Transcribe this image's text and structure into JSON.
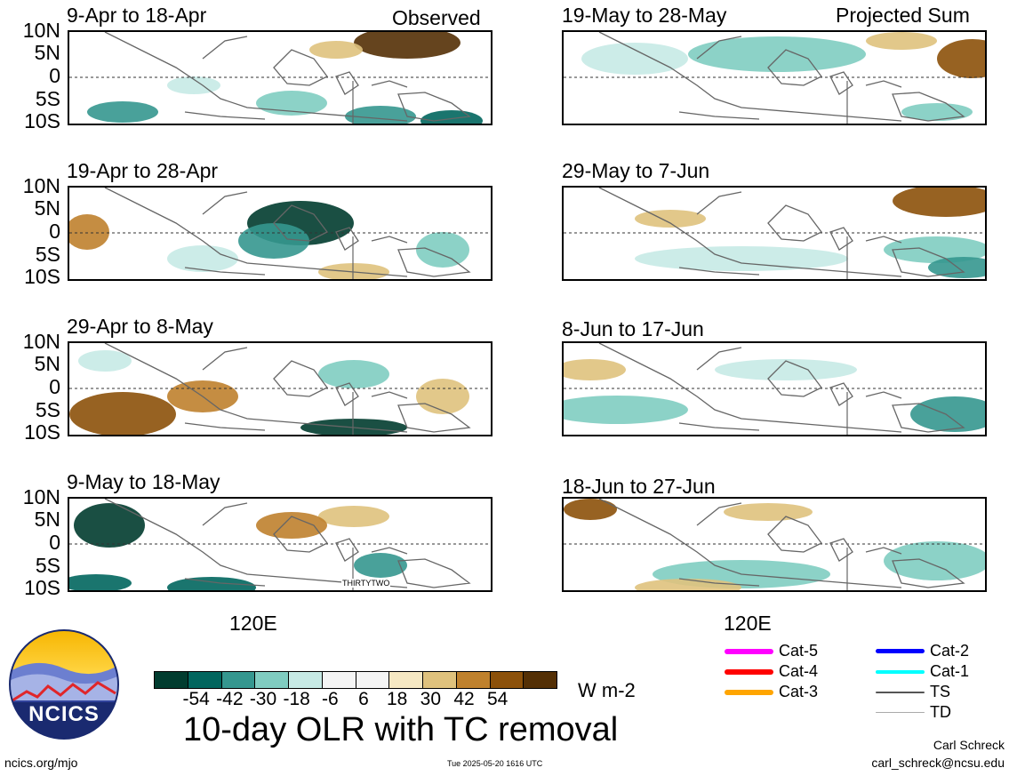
{
  "header": {
    "observed_label": "Observed",
    "projected_label": "Projected Sum"
  },
  "panels_left": [
    {
      "title": "9-Apr to 18-Apr"
    },
    {
      "title": "19-Apr to 28-Apr"
    },
    {
      "title": "29-Apr to 8-May"
    },
    {
      "title": "9-May to 18-May"
    }
  ],
  "panels_right": [
    {
      "title": "19-May to 28-May"
    },
    {
      "title": "29-May to 7-Jun"
    },
    {
      "title": "8-Jun to 17-Jun"
    },
    {
      "title": "18-Jun to 27-Jun"
    }
  ],
  "lat_labels": [
    "10N",
    "5N",
    "0",
    "5S",
    "10S"
  ],
  "lon_label": "120E",
  "storm_label": "THIRTYTWO",
  "colorbar": {
    "colors": [
      "#013c2f",
      "#01665e",
      "#35978f",
      "#80cdc1",
      "#c7eae5",
      "#f5f5f5",
      "#f5f5f5",
      "#f6e8c3",
      "#dfc27d",
      "#bf812d",
      "#8c510a",
      "#543005"
    ],
    "ticks": [
      "-54",
      "-42",
      "-30",
      "-18",
      "-6",
      "6",
      "18",
      "30",
      "42",
      "54"
    ],
    "units": "W m-2"
  },
  "main_title": "10-day OLR with TC removal",
  "legend": [
    {
      "label": "Cat-5",
      "color": "#ff00ff",
      "width": 6
    },
    {
      "label": "Cat-4",
      "color": "#ff0000",
      "width": 6
    },
    {
      "label": "Cat-3",
      "color": "#ffa500",
      "width": 6
    },
    {
      "label": "Cat-2",
      "color": "#0000ff",
      "width": 5
    },
    {
      "label": "Cat-1",
      "color": "#00ffff",
      "width": 4
    },
    {
      "label": "TS",
      "color": "#555555",
      "width": 2
    },
    {
      "label": "TD",
      "color": "#aaaaaa",
      "width": 1
    }
  ],
  "logo_text": "NCICS",
  "footer": {
    "url": "ncics.org/mjo",
    "timestamp": "Tue 2025-05-20 1616 UTC",
    "author": "Carl Schreck",
    "email": "carl_schreck@ncsu.edu"
  }
}
